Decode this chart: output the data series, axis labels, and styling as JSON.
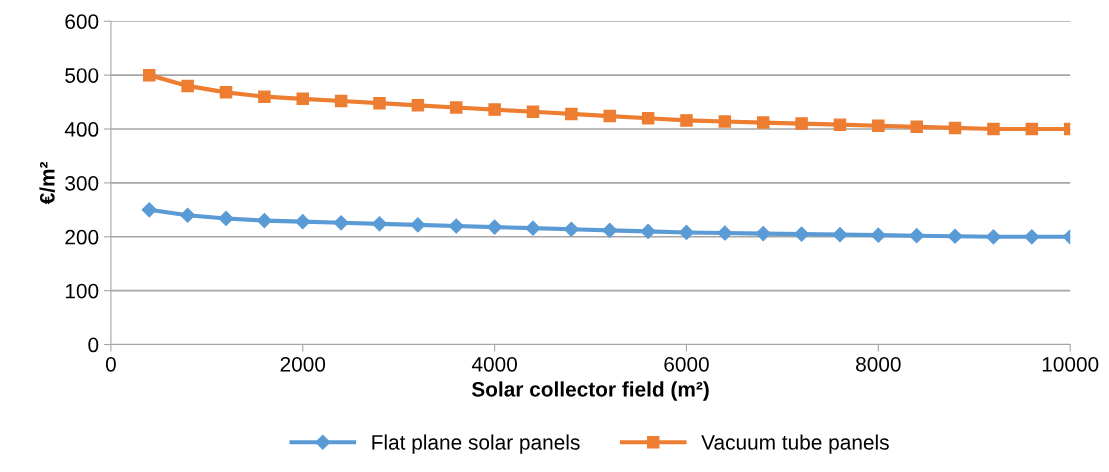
{
  "chart_data": {
    "type": "line",
    "xlabel": "Solar collector field (m²)",
    "ylabel": "€/m²",
    "x": [
      400,
      800,
      1200,
      1600,
      2000,
      2400,
      2800,
      3200,
      3600,
      4000,
      4400,
      4800,
      5200,
      5600,
      6000,
      6400,
      6800,
      7200,
      7600,
      8000,
      8400,
      8800,
      9200,
      9600,
      10000
    ],
    "series": [
      {
        "name": "Flat plane solar panels",
        "color": "#5b9bd5",
        "marker": "diamond",
        "values": [
          250,
          240,
          234,
          230,
          228,
          226,
          224,
          222,
          220,
          218,
          216,
          214,
          212,
          210,
          208,
          207,
          206,
          205,
          204,
          203,
          202,
          201,
          200,
          200,
          200
        ]
      },
      {
        "name": "Vacuum tube panels",
        "color": "#ed7d31",
        "marker": "square",
        "values": [
          500,
          480,
          468,
          460,
          456,
          452,
          448,
          444,
          440,
          436,
          432,
          428,
          424,
          420,
          416,
          414,
          412,
          410,
          408,
          406,
          404,
          402,
          400,
          400,
          400
        ]
      }
    ],
    "xlim": [
      0,
      10000
    ],
    "xticks": [
      0,
      2000,
      4000,
      6000,
      8000,
      10000
    ],
    "ylim": [
      0,
      600
    ],
    "yticks": [
      0,
      100,
      200,
      300,
      400,
      500,
      600
    ],
    "grid": "y",
    "legend": "bottom"
  }
}
